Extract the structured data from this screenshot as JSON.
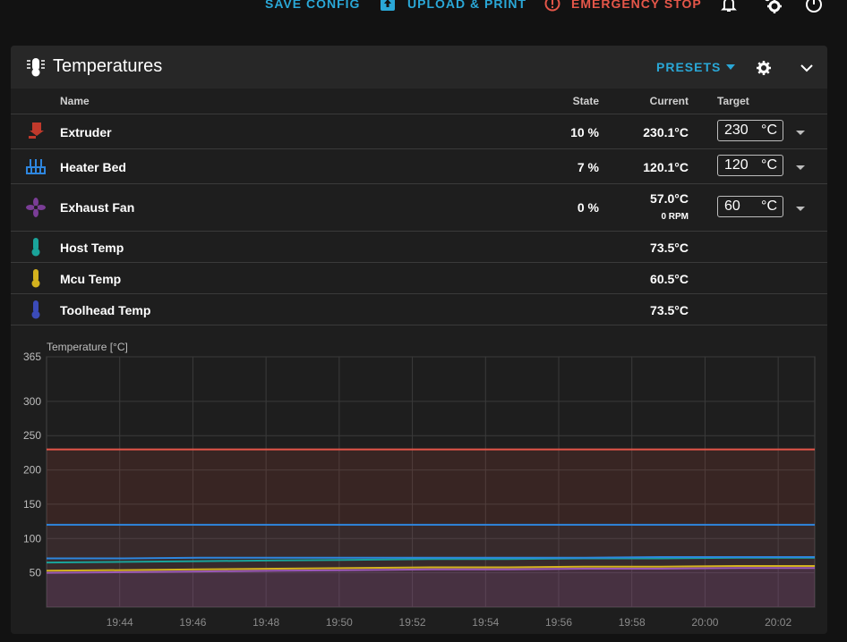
{
  "topbar": {
    "save_config": "SAVE CONFIG",
    "upload_print": "UPLOAD & PRINT",
    "emergency_stop": "EMERGENCY STOP"
  },
  "card": {
    "title": "Temperatures",
    "presets_label": "PRESETS"
  },
  "table": {
    "headers": {
      "name": "Name",
      "state": "State",
      "current": "Current",
      "target": "Target"
    },
    "rows": [
      {
        "name": "Extruder",
        "state": "10 %",
        "current": "230.1°C",
        "target": "230",
        "unit": "°C",
        "icon": "extruder-icon",
        "color": "#c0392b"
      },
      {
        "name": "Heater Bed",
        "state": "7 %",
        "current": "120.1°C",
        "target": "120",
        "unit": "°C",
        "icon": "heater-bed-icon",
        "color": "#2e86de"
      },
      {
        "name": "Exhaust Fan",
        "state": "0 %",
        "current": "57.0°C",
        "rpm": "0 RPM",
        "target": "60",
        "unit": "°C",
        "icon": "fan-icon",
        "color": "#7a3d96"
      },
      {
        "name": "Host Temp",
        "current": "73.5°C",
        "icon": "thermometer-icon",
        "color": "#1aa39a"
      },
      {
        "name": "Mcu Temp",
        "current": "60.5°C",
        "icon": "thermometer-icon",
        "color": "#d4b21e"
      },
      {
        "name": "Toolhead Temp",
        "current": "73.5°C",
        "icon": "thermometer-icon",
        "color": "#3b4bb8"
      }
    ]
  },
  "chart_data": {
    "type": "line",
    "ylabel": "Temperature [°C]",
    "ylim": [
      0,
      365
    ],
    "yticks": [
      50,
      100,
      150,
      200,
      250,
      300,
      365
    ],
    "x_tick_labels": [
      "19:44",
      "19:46",
      "19:48",
      "19:50",
      "19:52",
      "19:54",
      "19:56",
      "19:58",
      "20:00",
      "20:02"
    ],
    "x_tick_minutes": [
      2,
      4,
      6,
      8,
      10,
      12,
      14,
      16,
      18,
      20
    ],
    "x_range_minutes": [
      0,
      21
    ],
    "grid": true,
    "series": [
      {
        "color": "#e45649",
        "fill": "rgba(228,86,73,0.13)",
        "values": [
          230,
          230,
          230,
          230,
          230,
          230,
          230,
          230,
          230,
          230,
          230
        ]
      },
      {
        "color": "#2e86de",
        "fill": "rgba(46,134,222,0.05)",
        "values": [
          120,
          120,
          120,
          120,
          120,
          120,
          120,
          120,
          120,
          120,
          120
        ]
      },
      {
        "color": "#1aa39a",
        "fill": "",
        "values": [
          65,
          66,
          67,
          68,
          69,
          70,
          70,
          71,
          71,
          72,
          72
        ]
      },
      {
        "color": "#2e86de",
        "fill": "",
        "values": [
          71,
          71,
          72,
          72,
          72,
          72,
          72,
          72,
          73,
          73,
          73
        ]
      },
      {
        "color": "#d4b21e",
        "fill": "",
        "values": [
          53,
          54,
          55,
          56,
          57,
          58,
          58,
          59,
          59,
          60,
          60
        ]
      },
      {
        "color": "#9b59b6",
        "fill": "rgba(155,89,182,0.16)",
        "values": [
          50,
          51,
          52,
          53,
          54,
          55,
          55,
          56,
          56,
          57,
          57
        ]
      }
    ]
  }
}
